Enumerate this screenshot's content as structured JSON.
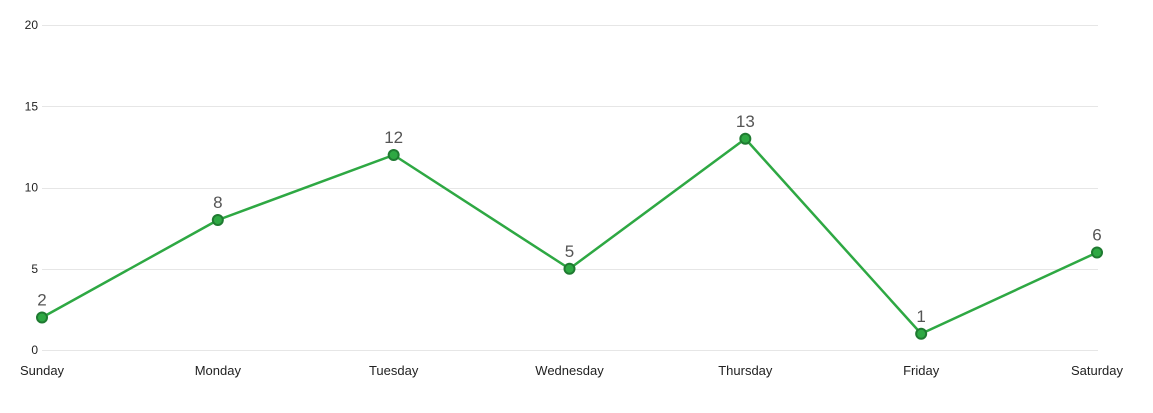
{
  "chart_data": {
    "type": "line",
    "categories": [
      "Sunday",
      "Monday",
      "Tuesday",
      "Wednesday",
      "Thursday",
      "Friday",
      "Saturday"
    ],
    "series": [
      {
        "values": [
          2,
          8,
          12,
          5,
          13,
          1,
          6
        ]
      }
    ],
    "ylim": [
      0,
      20
    ],
    "yticks": [
      0,
      5,
      10,
      15,
      20
    ],
    "grid": true,
    "data_labels": true,
    "legend": "none",
    "title": "",
    "xlabel": "",
    "ylabel": "",
    "colors": {
      "line": "#2ea843",
      "marker_fill": "#2ea843",
      "marker_stroke": "#1f7a31",
      "grid": "#e6e6e6",
      "text": "#222222",
      "data_label": "#555555"
    }
  }
}
